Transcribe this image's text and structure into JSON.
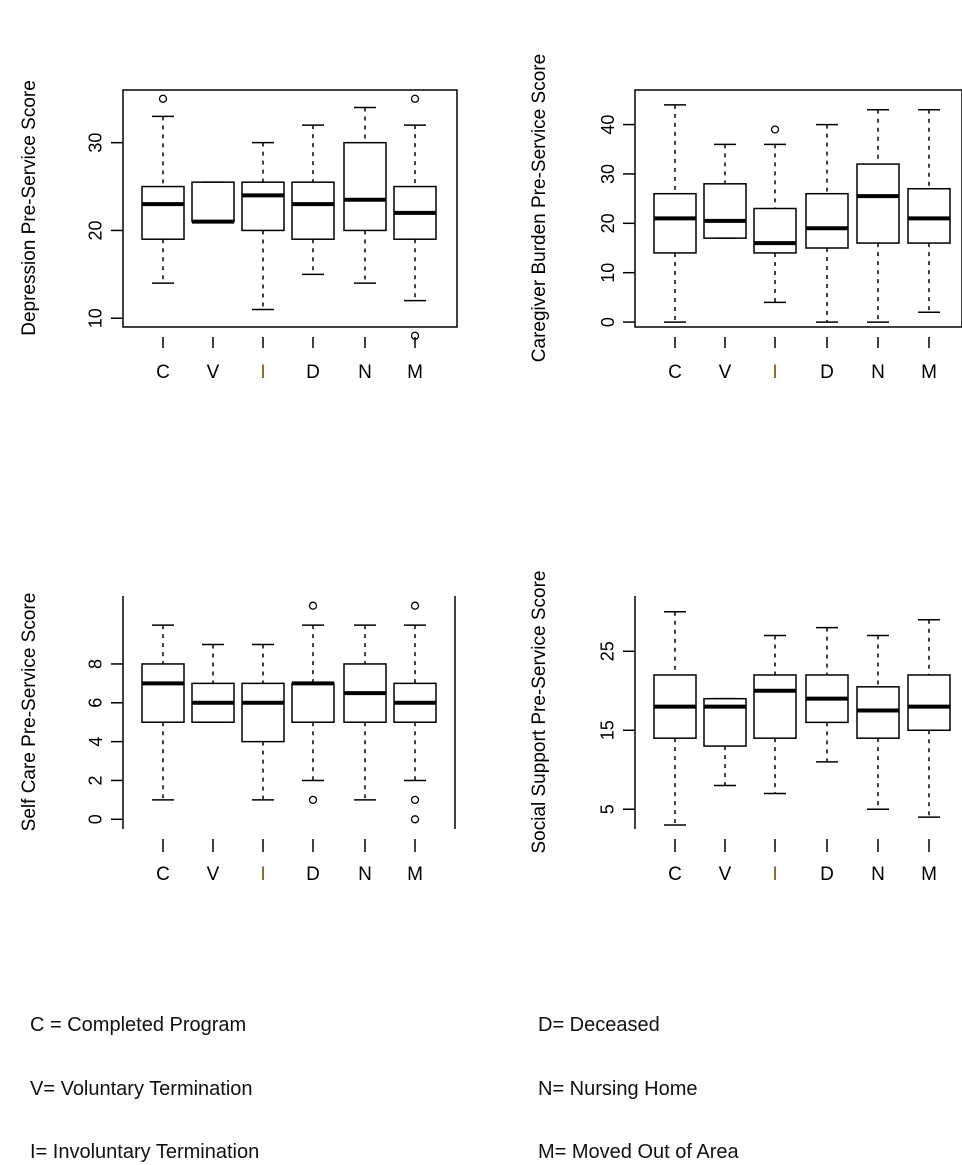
{
  "categories": [
    "C",
    "V",
    "I",
    "D",
    "N",
    "M"
  ],
  "category_label_colors": [
    "#000000",
    "#000000",
    "#8a5a1a",
    "#000000",
    "#000000",
    "#000000"
  ],
  "chart_data": [
    {
      "type": "box",
      "ylabel": "Depression Pre-Service Score",
      "ylim": [
        9,
        36
      ],
      "yticks": [
        10,
        20,
        30
      ],
      "grid": false,
      "categories": [
        "C",
        "V",
        "I",
        "D",
        "N",
        "M"
      ],
      "boxes": [
        {
          "category": "C",
          "whisker_low": 14,
          "q1": 19,
          "median": 23,
          "q3": 25,
          "whisker_high": 33,
          "outliers": [
            35
          ]
        },
        {
          "category": "V",
          "whisker_low": 21,
          "q1": 21,
          "median": 21,
          "q3": 25.5,
          "whisker_high": 25.5,
          "outliers": []
        },
        {
          "category": "I",
          "whisker_low": 11,
          "q1": 20,
          "median": 24,
          "q3": 25.5,
          "whisker_high": 30,
          "outliers": []
        },
        {
          "category": "D",
          "whisker_low": 15,
          "q1": 19,
          "median": 23,
          "q3": 25.5,
          "whisker_high": 32,
          "outliers": []
        },
        {
          "category": "N",
          "whisker_low": 14,
          "q1": 20,
          "median": 23.5,
          "q3": 30,
          "whisker_high": 34,
          "outliers": []
        },
        {
          "category": "M",
          "whisker_low": 12,
          "q1": 19,
          "median": 22,
          "q3": 25,
          "whisker_high": 32,
          "outliers": [
            8,
            35
          ]
        }
      ]
    },
    {
      "type": "box",
      "ylabel": "Caregiver Burden Pre-Service Score",
      "ylim": [
        -1,
        47
      ],
      "yticks": [
        0,
        10,
        20,
        30,
        40
      ],
      "grid": false,
      "categories": [
        "C",
        "V",
        "I",
        "D",
        "N",
        "M"
      ],
      "boxes": [
        {
          "category": "C",
          "whisker_low": 0,
          "q1": 14,
          "median": 21,
          "q3": 26,
          "whisker_high": 44,
          "outliers": []
        },
        {
          "category": "V",
          "whisker_low": 17,
          "q1": 17,
          "median": 20.5,
          "q3": 28,
          "whisker_high": 36,
          "outliers": []
        },
        {
          "category": "I",
          "whisker_low": 4,
          "q1": 14,
          "median": 16,
          "q3": 23,
          "whisker_high": 36,
          "outliers": [
            39
          ]
        },
        {
          "category": "D",
          "whisker_low": 0,
          "q1": 15,
          "median": 19,
          "q3": 26,
          "whisker_high": 40,
          "outliers": []
        },
        {
          "category": "N",
          "whisker_low": 0,
          "q1": 16,
          "median": 25.5,
          "q3": 32,
          "whisker_high": 43,
          "outliers": []
        },
        {
          "category": "M",
          "whisker_low": 2,
          "q1": 16,
          "median": 21,
          "q3": 27,
          "whisker_high": 43,
          "outliers": []
        }
      ]
    },
    {
      "type": "box",
      "ylabel": "Self Care Pre-Service Score",
      "ylim": [
        -0.5,
        11.5
      ],
      "yticks": [
        0,
        2,
        4,
        6,
        8
      ],
      "grid": false,
      "categories": [
        "C",
        "V",
        "I",
        "D",
        "N",
        "M"
      ],
      "boxes": [
        {
          "category": "C",
          "whisker_low": 1,
          "q1": 5,
          "median": 7,
          "q3": 8,
          "whisker_high": 10,
          "outliers": []
        },
        {
          "category": "V",
          "whisker_low": 5,
          "q1": 5,
          "median": 6,
          "q3": 7,
          "whisker_high": 9,
          "outliers": []
        },
        {
          "category": "I",
          "whisker_low": 1,
          "q1": 4,
          "median": 6,
          "q3": 7,
          "whisker_high": 9,
          "outliers": []
        },
        {
          "category": "D",
          "whisker_low": 2,
          "q1": 5,
          "median": 7,
          "q3": 7,
          "whisker_high": 10,
          "outliers": [
            1,
            11
          ]
        },
        {
          "category": "N",
          "whisker_low": 1,
          "q1": 5,
          "median": 6.5,
          "q3": 8,
          "whisker_high": 10,
          "outliers": []
        },
        {
          "category": "M",
          "whisker_low": 2,
          "q1": 5,
          "median": 6,
          "q3": 7,
          "whisker_high": 10,
          "outliers": [
            0,
            1,
            11
          ]
        }
      ]
    },
    {
      "type": "box",
      "ylabel": "Social Support Pre-Service Score",
      "ylim": [
        2.5,
        32
      ],
      "yticks": [
        5,
        15,
        25
      ],
      "grid": false,
      "categories": [
        "C",
        "V",
        "I",
        "D",
        "N",
        "M"
      ],
      "boxes": [
        {
          "category": "C",
          "whisker_low": 3,
          "q1": 14,
          "median": 18,
          "q3": 22,
          "whisker_high": 30,
          "outliers": []
        },
        {
          "category": "V",
          "whisker_low": 8,
          "q1": 13,
          "median": 18,
          "q3": 19,
          "whisker_high": 19,
          "outliers": []
        },
        {
          "category": "I",
          "whisker_low": 7,
          "q1": 14,
          "median": 20,
          "q3": 22,
          "whisker_high": 27,
          "outliers": []
        },
        {
          "category": "D",
          "whisker_low": 11,
          "q1": 16,
          "median": 19,
          "q3": 22,
          "whisker_high": 28,
          "outliers": []
        },
        {
          "category": "N",
          "whisker_low": 5,
          "q1": 14,
          "median": 17.5,
          "q3": 20.5,
          "whisker_high": 27,
          "outliers": []
        },
        {
          "category": "M",
          "whisker_low": 4,
          "q1": 15,
          "median": 18,
          "q3": 22,
          "whisker_high": 29,
          "outliers": []
        }
      ]
    }
  ],
  "legend": [
    {
      "text": "C = Completed Program"
    },
    {
      "text": "V= Voluntary Termination"
    },
    {
      "text": "I=  Involuntary Termination"
    },
    {
      "text": "D= Deceased"
    },
    {
      "text": "N= Nursing Home"
    },
    {
      "text": "M= Moved Out of Area"
    }
  ]
}
